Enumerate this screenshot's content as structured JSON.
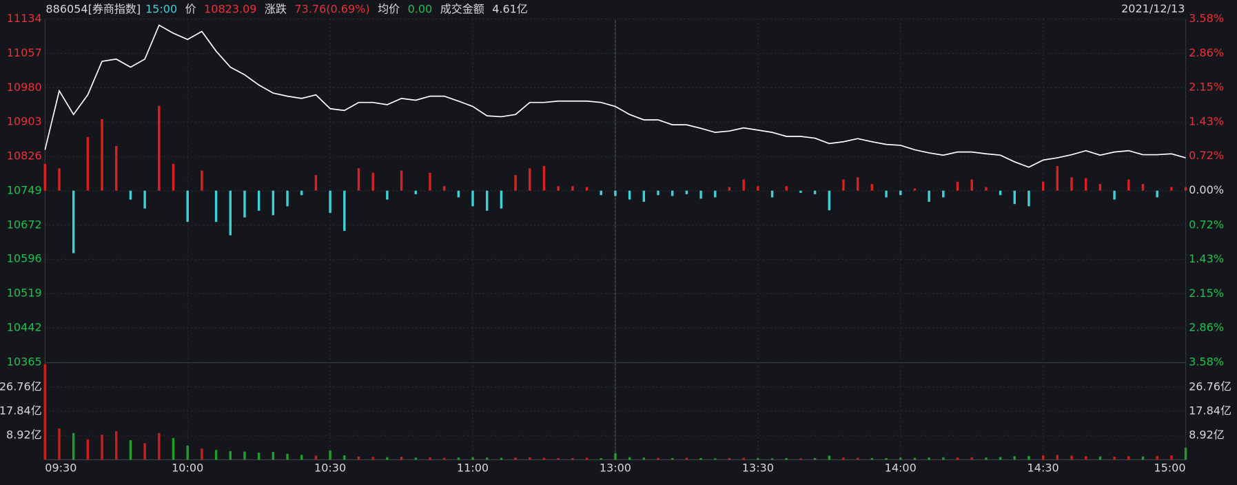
{
  "chart_data": {
    "type": "line",
    "header": {
      "code": "886054[券商指数]",
      "time": "15:00",
      "price_label": "价",
      "price": "10823.09",
      "change_label": "涨跌",
      "change": "73.76(0.69%)",
      "avg_label": "均价",
      "avg": "0.00",
      "amount_label": "成交金额",
      "amount": "4.61亿",
      "date": "2021/12/13"
    },
    "categories": [
      "09:30",
      null,
      null,
      null,
      null,
      null,
      null,
      null,
      null,
      null,
      "10:00",
      null,
      null,
      null,
      null,
      null,
      null,
      null,
      null,
      null,
      "10:30",
      null,
      null,
      null,
      null,
      null,
      null,
      null,
      null,
      null,
      "11:00",
      null,
      null,
      null,
      null,
      null,
      null,
      null,
      null,
      null,
      "13:00",
      null,
      null,
      null,
      null,
      null,
      null,
      null,
      null,
      null,
      "13:30",
      null,
      null,
      null,
      null,
      null,
      null,
      null,
      null,
      null,
      "14:00",
      null,
      null,
      null,
      null,
      null,
      null,
      null,
      null,
      null,
      "14:30",
      null,
      null,
      null,
      null,
      null,
      null,
      null,
      null,
      null,
      "15:00"
    ],
    "values": [
      10841,
      10973,
      10920,
      10964,
      11039,
      11044,
      11026,
      11044,
      11120,
      11102,
      11088,
      11106,
      11062,
      11026,
      11009,
      10986,
      10968,
      10961,
      10956,
      10964,
      10933,
      10929,
      10947,
      10947,
      10942,
      10956,
      10952,
      10961,
      10961,
      10950,
      10938,
      10917,
      10915,
      10920,
      10947,
      10947,
      10950,
      10950,
      10950,
      10947,
      10938,
      10920,
      10908,
      10908,
      10897,
      10897,
      10889,
      10880,
      10883,
      10890,
      10885,
      10880,
      10871,
      10871,
      10867,
      10855,
      10859,
      10866,
      10859,
      10853,
      10851,
      10841,
      10834,
      10829,
      10836,
      10836,
      10832,
      10829,
      10814,
      10802,
      10818,
      10823,
      10830,
      10839,
      10829,
      10836,
      10839,
      10830,
      10830,
      10832,
      10823.09
    ],
    "color": "#ffffff",
    "ylim": [
      10365,
      11134
    ],
    "yticks": [
      11134,
      11057,
      10980,
      10903,
      10826,
      10749,
      10672,
      10596,
      10519,
      10442,
      10365
    ],
    "y2lim": [
      -3.58,
      3.58
    ],
    "y2ticks": [
      {
        "value": 3.58,
        "label": "3.58%"
      },
      {
        "value": 2.86,
        "label": "2.86%"
      },
      {
        "value": 2.15,
        "label": "2.15%"
      },
      {
        "value": 1.43,
        "label": "1.43%"
      },
      {
        "value": 0.72,
        "label": "0.72%"
      },
      {
        "value": 0,
        "label": "0.00%"
      },
      {
        "value": -0.72,
        "label": "0.72%"
      },
      {
        "value": -1.43,
        "label": "1.43%"
      },
      {
        "value": -2.15,
        "label": "2.15%"
      },
      {
        "value": -2.86,
        "label": "2.86%"
      },
      {
        "value": -3.58,
        "label": "3.58%"
      }
    ],
    "grid": true,
    "up_label_color": "#e8313a",
    "flat_label_color": "#d8d8d8",
    "down_label_color": "#20c050",
    "strength": {
      "values": [
        60,
        50,
        -140,
        120,
        160,
        100,
        -20,
        -40,
        190,
        60,
        -70,
        45,
        -70,
        -100,
        -60,
        -45,
        -55,
        -35,
        -10,
        35,
        -50,
        -90,
        50,
        40,
        -20,
        45,
        -8,
        40,
        10,
        -15,
        -35,
        -45,
        -40,
        35,
        50,
        55,
        10,
        10,
        8,
        -10,
        -12,
        -20,
        -25,
        -10,
        -12,
        -8,
        -18,
        -15,
        8,
        25,
        10,
        -15,
        10,
        -5,
        -8,
        -44,
        25,
        30,
        15,
        -15,
        -10,
        5,
        -25,
        -15,
        20,
        25,
        8,
        -10,
        -30,
        -35,
        20,
        55,
        30,
        28,
        15,
        -20,
        25,
        15,
        -15,
        8,
        8
      ],
      "up_color": "#d8221f",
      "down_color": "#3fd1d6"
    },
    "volume": {
      "values": [
        35.2,
        11.5,
        9.8,
        7.5,
        9.2,
        10.5,
        7.2,
        6.1,
        9.8,
        8.0,
        5.2,
        4.1,
        3.6,
        3.2,
        3.0,
        2.6,
        2.9,
        2.2,
        1.8,
        1.5,
        3.4,
        1.6,
        1.2,
        1.0,
        0.9,
        1.1,
        0.8,
        0.9,
        0.7,
        0.8,
        0.9,
        0.8,
        0.7,
        0.8,
        0.9,
        0.7,
        0.6,
        0.6,
        0.7,
        0.6,
        2.4,
        0.9,
        0.8,
        0.7,
        0.6,
        0.7,
        0.6,
        0.5,
        0.6,
        0.7,
        0.6,
        0.5,
        0.6,
        0.5,
        0.6,
        1.5,
        0.8,
        0.7,
        0.6,
        0.6,
        0.8,
        0.7,
        0.8,
        0.9,
        0.8,
        0.9,
        0.8,
        1.0,
        1.3,
        1.4,
        1.6,
        1.8,
        1.5,
        1.3,
        1.2,
        1.1,
        1.3,
        1.2,
        1.4,
        1.6,
        4.4
      ],
      "up_color": "#c8201c",
      "down_color": "#1f9e2e",
      "ylim": [
        0,
        35.68
      ],
      "yticks": [
        {
          "value": 26.76,
          "label": "26.76亿"
        },
        {
          "value": 17.84,
          "label": "17.84亿"
        },
        {
          "value": 8.92,
          "label": "8.92亿"
        }
      ]
    }
  }
}
